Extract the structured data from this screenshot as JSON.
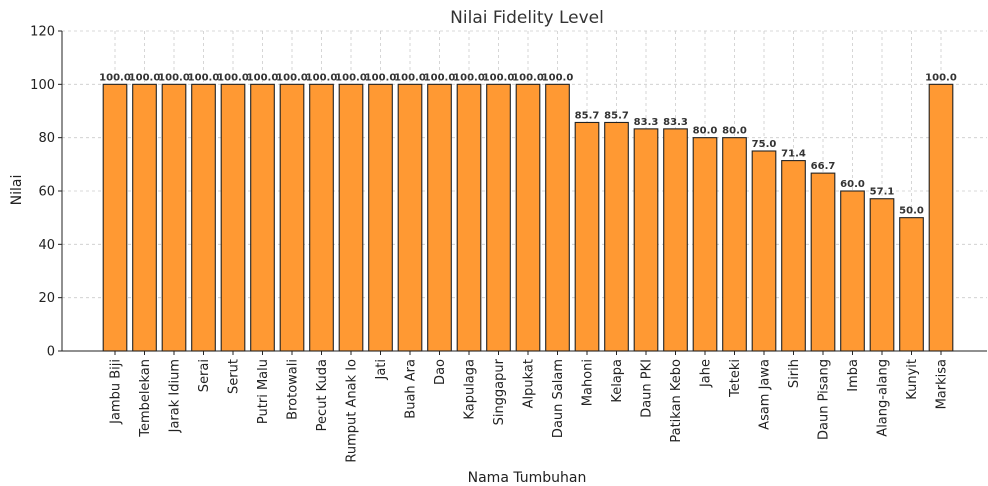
{
  "chart_data": {
    "type": "bar",
    "title": "Nilai Fidelity Level",
    "xlabel": "Nama Tumbuhan",
    "ylabel": "Nilai",
    "ylim": [
      0,
      120
    ],
    "yticks": [
      0,
      20,
      40,
      60,
      80,
      100,
      120
    ],
    "grid": true,
    "bar_color": "#ff9933",
    "categories": [
      "Jambu Biji",
      "Tembelekan",
      "Jarak Idium",
      "Serai",
      "Serut",
      "Putri Malu",
      "Brotowali",
      "Pecut Kuda",
      "Rumput Anak Io",
      "Jati",
      "Buah Ara",
      "Dao",
      "Kapulaga",
      "Singgapur",
      "Alpukat",
      "Daun Salam",
      "Mahoni",
      "Kelapa",
      "Daun PKI",
      "Patikan Kebo",
      "Jahe",
      "Teteki",
      "Asam Jawa",
      "Sirih",
      "Daun Pisang",
      "Imba",
      "Alang-alang",
      "Kunyit",
      "Markisa"
    ],
    "values": [
      100.0,
      100.0,
      100.0,
      100.0,
      100.0,
      100.0,
      100.0,
      100.0,
      100.0,
      100.0,
      100.0,
      100.0,
      100.0,
      100.0,
      100.0,
      100.0,
      85.7,
      85.7,
      83.3,
      83.3,
      80.0,
      80.0,
      75.0,
      71.4,
      66.7,
      60.0,
      57.1,
      50.0,
      100.0
    ],
    "data_labels": [
      "100.0",
      "100.0",
      "100.0",
      "100.0",
      "100.0",
      "100.0",
      "100.0",
      "100.0",
      "100.0",
      "100.0",
      "100.0",
      "100.0",
      "100.0",
      "100.0",
      "100.0",
      "100.0",
      "85.7",
      "85.7",
      "83.3",
      "83.3",
      "80.0",
      "80.0",
      "75.0",
      "71.4",
      "66.7",
      "60.0",
      "57.1",
      "50.0",
      "100.0"
    ]
  }
}
